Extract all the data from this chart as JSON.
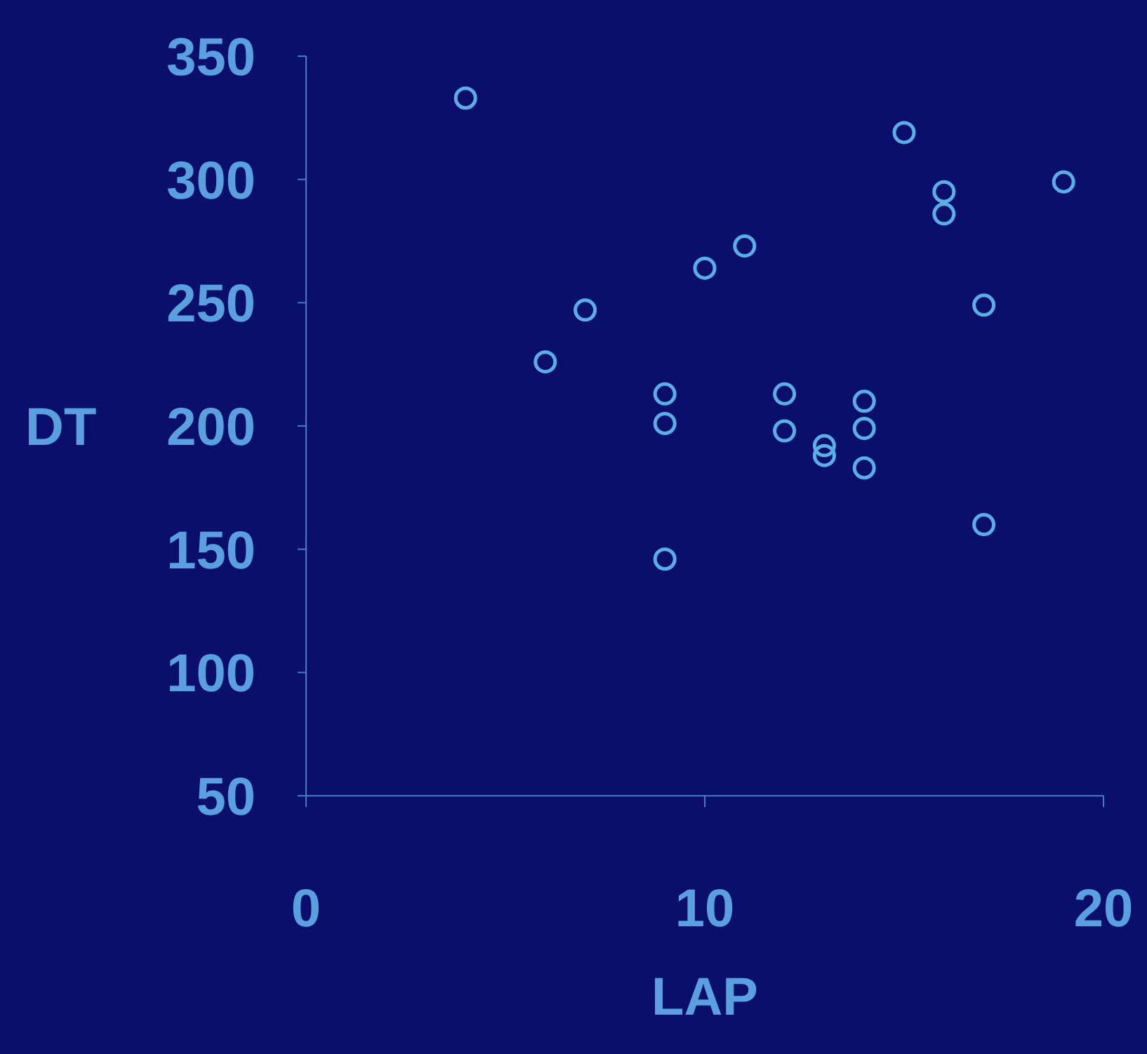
{
  "chart_data": {
    "type": "scatter",
    "xlabel": "LAP",
    "ylabel": "DT",
    "x": [
      4,
      6,
      7,
      9,
      9,
      9,
      10,
      11,
      12,
      12,
      13,
      13,
      14,
      14,
      14,
      15,
      16,
      16,
      17,
      17,
      19
    ],
    "values": [
      333,
      226,
      247,
      213,
      201,
      146,
      264,
      273,
      213,
      198,
      192,
      188,
      210,
      199,
      183,
      319,
      295,
      286,
      249,
      160,
      299
    ],
    "color": "#5aaee8",
    "marker": "circle",
    "grid": false,
    "xlim": [
      0,
      20
    ],
    "xticks": [
      0,
      10,
      20
    ],
    "ylim": [
      50,
      350
    ],
    "yticks": [
      50,
      100,
      150,
      200,
      250,
      300,
      350
    ]
  }
}
